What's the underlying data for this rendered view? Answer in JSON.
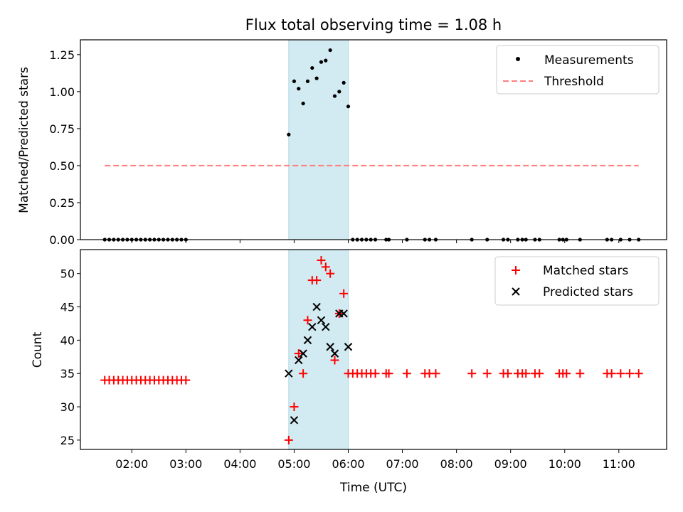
{
  "chart_data": [
    {
      "type": "scatter",
      "title": "Flux total observing time = 1.08 h",
      "xlabel": "",
      "ylabel": "Matched/Predicted stars",
      "ylim": [
        0,
        1.35
      ],
      "yticks": [
        0.0,
        0.25,
        0.5,
        0.75,
        1.0,
        1.25
      ],
      "ytick_labels": [
        "0.00",
        "0.25",
        "0.50",
        "0.75",
        "1.00",
        "1.25"
      ],
      "xlim": [
        "01:03",
        "11:53"
      ],
      "grid": false,
      "legend": "top-right",
      "shaded_interval": {
        "start": "04:54",
        "end": "06:00",
        "color": "#add8e6"
      },
      "series": [
        {
          "name": "Measurements",
          "marker": "dot",
          "color": "#000000",
          "points": [
            [
              "01:30",
              0
            ],
            [
              "01:35",
              0
            ],
            [
              "01:40",
              0
            ],
            [
              "01:45",
              0
            ],
            [
              "01:50",
              0
            ],
            [
              "01:55",
              0
            ],
            [
              "02:00",
              0
            ],
            [
              "02:05",
              0
            ],
            [
              "02:10",
              0
            ],
            [
              "02:15",
              0
            ],
            [
              "02:20",
              0
            ],
            [
              "02:25",
              0
            ],
            [
              "02:30",
              0
            ],
            [
              "02:35",
              0
            ],
            [
              "02:40",
              0
            ],
            [
              "02:45",
              0
            ],
            [
              "02:50",
              0
            ],
            [
              "02:55",
              0
            ],
            [
              "03:00",
              0
            ],
            [
              "04:54",
              0.71
            ],
            [
              "05:00",
              1.07
            ],
            [
              "05:05",
              1.02
            ],
            [
              "05:10",
              0.92
            ],
            [
              "05:15",
              1.07
            ],
            [
              "05:20",
              1.16
            ],
            [
              "05:25",
              1.09
            ],
            [
              "05:30",
              1.2
            ],
            [
              "05:35",
              1.21
            ],
            [
              "05:40",
              1.28
            ],
            [
              "05:45",
              0.97
            ],
            [
              "05:50",
              1.0
            ],
            [
              "05:55",
              1.06
            ],
            [
              "06:00",
              0.9
            ],
            [
              "06:05",
              0
            ],
            [
              "06:10",
              0
            ],
            [
              "06:15",
              0
            ],
            [
              "06:20",
              0
            ],
            [
              "06:25",
              0
            ],
            [
              "06:30",
              0
            ],
            [
              "06:42",
              0
            ],
            [
              "06:45",
              0
            ],
            [
              "07:05",
              0
            ],
            [
              "07:25",
              0
            ],
            [
              "07:30",
              0
            ],
            [
              "07:37",
              0
            ],
            [
              "08:17",
              0
            ],
            [
              "08:34",
              0
            ],
            [
              "08:52",
              0
            ],
            [
              "08:57",
              0
            ],
            [
              "09:08",
              0
            ],
            [
              "09:13",
              0
            ],
            [
              "09:17",
              0
            ],
            [
              "09:27",
              0
            ],
            [
              "09:32",
              0
            ],
            [
              "09:54",
              0
            ],
            [
              "09:58",
              0
            ],
            [
              "10:02",
              0
            ],
            [
              "10:17",
              0
            ],
            [
              "10:47",
              0
            ],
            [
              "10:52",
              0
            ],
            [
              "11:02",
              0
            ],
            [
              "11:12",
              0
            ],
            [
              "11:22",
              0
            ]
          ]
        },
        {
          "name": "Threshold",
          "style": "dashed-line",
          "color": "#ff7f7f",
          "points": [
            [
              "01:30",
              0.5
            ],
            [
              "11:22",
              0.5
            ]
          ]
        }
      ]
    },
    {
      "type": "scatter",
      "title": "",
      "xlabel": "Time (UTC)",
      "ylabel": "Count",
      "ylim": [
        23.6,
        53.6
      ],
      "yticks": [
        25,
        30,
        35,
        40,
        45,
        50
      ],
      "ytick_labels": [
        "25",
        "30",
        "35",
        "40",
        "45",
        "50"
      ],
      "xlim": [
        "01:03",
        "11:53"
      ],
      "xticks": [
        "02:00",
        "03:00",
        "04:00",
        "05:00",
        "06:00",
        "07:00",
        "08:00",
        "09:00",
        "10:00",
        "11:00"
      ],
      "grid": false,
      "legend": "top-right",
      "shaded_interval": {
        "start": "04:54",
        "end": "06:00",
        "color": "#add8e6"
      },
      "series": [
        {
          "name": "Matched stars",
          "marker": "plus",
          "color": "#ff0000",
          "points": [
            [
              "01:30",
              34
            ],
            [
              "01:35",
              34
            ],
            [
              "01:40",
              34
            ],
            [
              "01:45",
              34
            ],
            [
              "01:50",
              34
            ],
            [
              "01:55",
              34
            ],
            [
              "02:00",
              34
            ],
            [
              "02:05",
              34
            ],
            [
              "02:10",
              34
            ],
            [
              "02:15",
              34
            ],
            [
              "02:20",
              34
            ],
            [
              "02:25",
              34
            ],
            [
              "02:30",
              34
            ],
            [
              "02:35",
              34
            ],
            [
              "02:40",
              34
            ],
            [
              "02:45",
              34
            ],
            [
              "02:50",
              34
            ],
            [
              "02:55",
              34
            ],
            [
              "03:00",
              34
            ],
            [
              "04:54",
              25
            ],
            [
              "05:00",
              30
            ],
            [
              "05:05",
              38
            ],
            [
              "05:10",
              35
            ],
            [
              "05:15",
              43
            ],
            [
              "05:20",
              49
            ],
            [
              "05:25",
              49
            ],
            [
              "05:30",
              52
            ],
            [
              "05:35",
              51
            ],
            [
              "05:40",
              50
            ],
            [
              "05:45",
              37
            ],
            [
              "05:50",
              44
            ],
            [
              "05:55",
              47
            ],
            [
              "06:00",
              35
            ],
            [
              "06:05",
              35
            ],
            [
              "06:10",
              35
            ],
            [
              "06:15",
              35
            ],
            [
              "06:20",
              35
            ],
            [
              "06:25",
              35
            ],
            [
              "06:30",
              35
            ],
            [
              "06:42",
              35
            ],
            [
              "06:45",
              35
            ],
            [
              "07:05",
              35
            ],
            [
              "07:25",
              35
            ],
            [
              "07:30",
              35
            ],
            [
              "07:37",
              35
            ],
            [
              "08:17",
              35
            ],
            [
              "08:34",
              35
            ],
            [
              "08:52",
              35
            ],
            [
              "08:57",
              35
            ],
            [
              "09:08",
              35
            ],
            [
              "09:13",
              35
            ],
            [
              "09:17",
              35
            ],
            [
              "09:27",
              35
            ],
            [
              "09:32",
              35
            ],
            [
              "09:54",
              35
            ],
            [
              "09:58",
              35
            ],
            [
              "10:02",
              35
            ],
            [
              "10:17",
              35
            ],
            [
              "10:47",
              35
            ],
            [
              "10:52",
              35
            ],
            [
              "11:02",
              35
            ],
            [
              "11:12",
              35
            ],
            [
              "11:22",
              35
            ]
          ]
        },
        {
          "name": "Predicted stars",
          "marker": "x",
          "color": "#000000",
          "points": [
            [
              "04:54",
              35
            ],
            [
              "05:00",
              28
            ],
            [
              "05:05",
              37
            ],
            [
              "05:10",
              38
            ],
            [
              "05:15",
              40
            ],
            [
              "05:20",
              42
            ],
            [
              "05:25",
              45
            ],
            [
              "05:30",
              43
            ],
            [
              "05:35",
              42
            ],
            [
              "05:40",
              39
            ],
            [
              "05:45",
              38
            ],
            [
              "05:50",
              44
            ],
            [
              "05:55",
              44
            ],
            [
              "06:00",
              39
            ]
          ]
        }
      ]
    }
  ]
}
